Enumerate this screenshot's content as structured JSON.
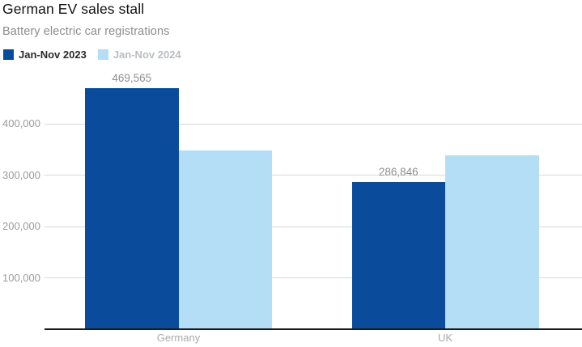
{
  "header": {
    "title": "German EV sales stall",
    "subtitle": "Battery electric car registrations"
  },
  "legend": [
    {
      "label": "Jan-Nov 2023",
      "swatch_color": "#0a4c9b",
      "label_color": "#2b2b2b"
    },
    {
      "label": "Jan-Nov 2024",
      "swatch_color": "#b4def6",
      "label_color": "#b9bdc1"
    }
  ],
  "chart_data": {
    "type": "bar",
    "title": "German EV sales stall",
    "subtitle": "Battery electric car registrations",
    "categories": [
      "Germany",
      "UK"
    ],
    "series": [
      {
        "name": "Jan-Nov 2023",
        "color": "#0a4c9b",
        "values": [
          469565,
          286846
        ],
        "value_labels": [
          "469,565",
          "286,846"
        ]
      },
      {
        "name": "Jan-Nov 2024",
        "color": "#b4def6",
        "values": [
          348000,
          339000
        ],
        "value_labels": [
          "",
          ""
        ]
      }
    ],
    "ylim": [
      0,
      500000
    ],
    "yticks": [
      100000,
      200000,
      300000,
      400000
    ],
    "ytick_labels": [
      "100,000",
      "200,000",
      "300,000",
      "400,000"
    ],
    "xlabel": "",
    "ylabel": "",
    "grid": "horizontal",
    "legend_position": "top-left"
  },
  "colors": {
    "background": "#ffffff",
    "grid": "#d9d9d9",
    "axis_line": "#1a1a1a",
    "ytick_text": "#9b9b9b",
    "value_label_text": "#8f8f8f",
    "category_text": "#aaaaaa",
    "title_text": "#121212",
    "subtitle_text": "#8d8d8d"
  }
}
